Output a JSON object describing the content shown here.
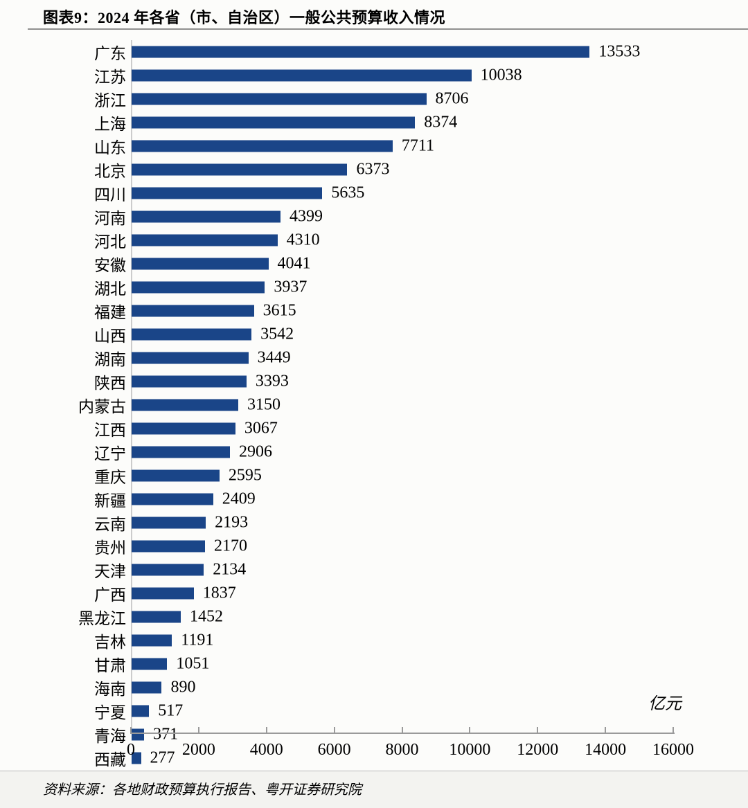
{
  "header": {
    "title": "图表9：2024 年各省（市、自治区）一般公共预算收入情况"
  },
  "footer": {
    "source": "资料来源：各地财政预算执行报告、粤开证券研究院"
  },
  "chart_data": {
    "type": "bar",
    "orientation": "horizontal",
    "title": "2024 年各省（市、自治区）一般公共预算收入情况",
    "unit_label": "亿元",
    "xlabel": "",
    "ylabel": "",
    "xlim": [
      0,
      16000
    ],
    "x_ticks": [
      0,
      2000,
      4000,
      6000,
      8000,
      10000,
      12000,
      14000,
      16000
    ],
    "grid": false,
    "legend": "none",
    "value_labels": true,
    "bar_color": "#1A4588",
    "categories": [
      "广东",
      "江苏",
      "浙江",
      "上海",
      "山东",
      "北京",
      "四川",
      "河南",
      "河北",
      "安徽",
      "湖北",
      "福建",
      "山西",
      "湖南",
      "陕西",
      "内蒙古",
      "江西",
      "辽宁",
      "重庆",
      "新疆",
      "云南",
      "贵州",
      "天津",
      "广西",
      "黑龙江",
      "吉林",
      "甘肃",
      "海南",
      "宁夏",
      "青海",
      "西藏"
    ],
    "values": [
      13533,
      10038,
      8706,
      8374,
      7711,
      6373,
      5635,
      4399,
      4310,
      4041,
      3937,
      3615,
      3542,
      3449,
      3393,
      3150,
      3067,
      2906,
      2595,
      2409,
      2193,
      2170,
      2134,
      1837,
      1452,
      1191,
      1051,
      890,
      517,
      371,
      277
    ]
  }
}
